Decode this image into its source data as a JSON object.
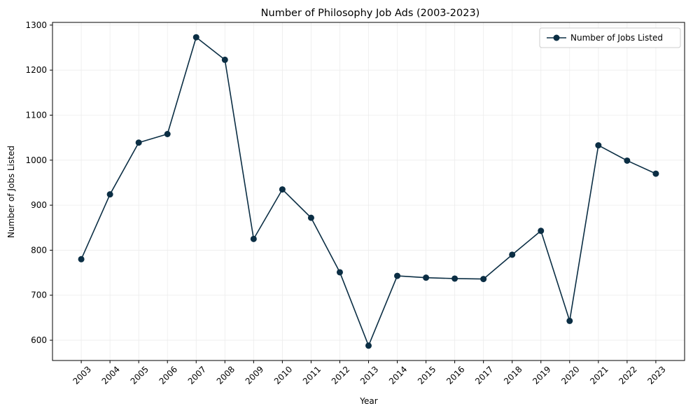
{
  "chart_data": {
    "type": "line",
    "title": "Number of Philosophy Job Ads (2003-2023)",
    "xlabel": "Year",
    "ylabel": "Number of Jobs Listed",
    "categories": [
      "2003",
      "2004",
      "2005",
      "2006",
      "2007",
      "2008",
      "2009",
      "2010",
      "2011",
      "2012",
      "2013",
      "2014",
      "2015",
      "2016",
      "2017",
      "2018",
      "2019",
      "2020",
      "2021",
      "2022",
      "2023"
    ],
    "series": [
      {
        "name": "Number of Jobs Listed",
        "values": [
          780,
          924,
          1039,
          1058,
          1273,
          1223,
          825,
          935,
          872,
          751,
          588,
          743,
          739,
          737,
          736,
          790,
          843,
          643,
          1033,
          999,
          970
        ],
        "color": "#0b2e44",
        "marker": "circle"
      }
    ],
    "ylim": [
      555,
      1306
    ],
    "yticks": [
      600,
      700,
      800,
      900,
      1000,
      1100,
      1200,
      1300
    ],
    "grid": true,
    "legend_position": "top-right"
  }
}
